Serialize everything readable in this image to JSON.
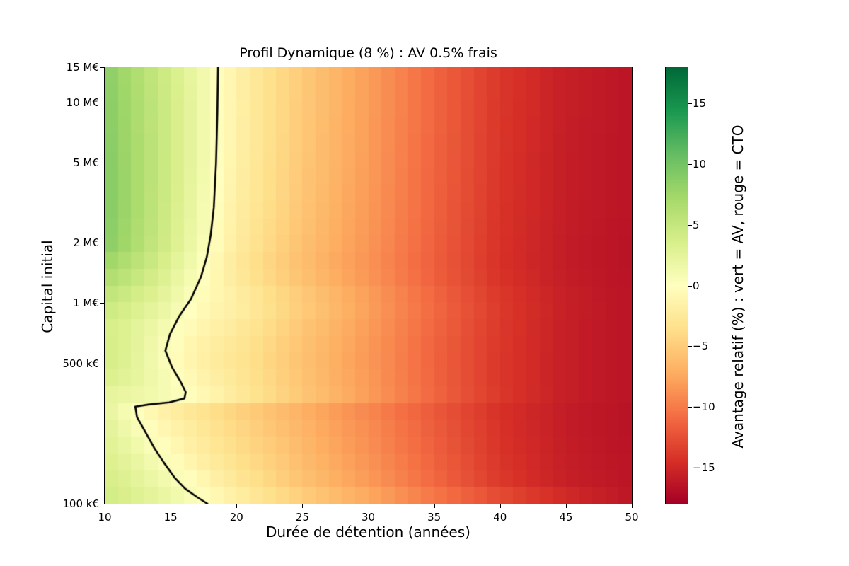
{
  "figure": {
    "title": "Profil Dynamique (8 %) : AV 0.5% frais",
    "xlabel": "Durée de détention (années)",
    "ylabel": "Capital initial"
  },
  "chart_data": {
    "type": "heatmap",
    "title": "Profil Dynamique (8 %) : AV 0.5% frais",
    "xlabel": "Durée de détention (années)",
    "ylabel": "Capital initial",
    "x_axis_range": [
      10,
      50
    ],
    "x_ticks": [
      10,
      15,
      20,
      25,
      30,
      35,
      40,
      45,
      50
    ],
    "y_scale": "log",
    "y_ticks": [
      {
        "label": "15 M€",
        "value": 15000000
      },
      {
        "label": "10 M€",
        "value": 10000000
      },
      {
        "label": "5 M€",
        "value": 5000000
      },
      {
        "label": "2 M€",
        "value": 2000000
      },
      {
        "label": "1 M€",
        "value": 1000000
      },
      {
        "label": "500 k€",
        "value": 500000
      },
      {
        "label": "100 k€",
        "value": 100000
      }
    ],
    "x": [
      10,
      12,
      14,
      16,
      18,
      20,
      22,
      25,
      28,
      30,
      35,
      40,
      45,
      50
    ],
    "capital": [
      15000000,
      10000000,
      5000000,
      3000000,
      2000000,
      1500000,
      1000000,
      750000,
      550000,
      420000,
      350000,
      300000,
      250000,
      200000,
      150000,
      120000,
      100000
    ],
    "values": [
      [
        8.8,
        6.9,
        4.9,
        2.8,
        0.7,
        -1.6,
        -3.1,
        -5.2,
        -7.0,
        -8.1,
        -11.2,
        -14.0,
        -15.7,
        -16.4
      ],
      [
        9.0,
        7.1,
        5.1,
        3.0,
        0.8,
        -1.5,
        -3.1,
        -5.2,
        -7.0,
        -8.1,
        -11.2,
        -14.0,
        -15.7,
        -16.4
      ],
      [
        9.3,
        7.3,
        5.2,
        3.0,
        0.7,
        -1.6,
        -3.2,
        -5.3,
        -7.1,
        -8.2,
        -11.3,
        -14.1,
        -15.8,
        -16.5
      ],
      [
        9.3,
        7.3,
        5.1,
        2.8,
        0.4,
        -1.9,
        -3.4,
        -5.5,
        -7.3,
        -8.3,
        -11.4,
        -14.2,
        -15.8,
        -16.5
      ],
      [
        9.0,
        7.0,
        4.8,
        2.5,
        0.1,
        -2.2,
        -3.7,
        -5.8,
        -7.5,
        -8.5,
        -11.5,
        -14.3,
        -15.9,
        -16.6
      ],
      [
        7.4,
        5.8,
        4.0,
        1.8,
        -0.5,
        -2.6,
        -4.1,
        -6.1,
        -7.8,
        -8.7,
        -11.7,
        -14.4,
        -15.9,
        -16.6
      ],
      [
        4.9,
        3.8,
        2.6,
        0.6,
        -0.8,
        -1.7,
        -3.0,
        -4.9,
        -6.7,
        -7.9,
        -11.0,
        -13.8,
        -15.6,
        -16.5
      ],
      [
        3.8,
        2.9,
        1.5,
        -0.3,
        -1.5,
        -2.4,
        -3.6,
        -5.4,
        -7.1,
        -8.2,
        -11.2,
        -13.9,
        -15.7,
        -16.5
      ],
      [
        4.2,
        2.9,
        0.8,
        -1.0,
        -2.2,
        -3.0,
        -4.1,
        -5.8,
        -7.4,
        -8.4,
        -11.4,
        -14.0,
        -15.7,
        -16.5
      ],
      [
        3.4,
        2.5,
        1.2,
        -0.3,
        -1.7,
        -2.7,
        -3.9,
        -5.6,
        -7.3,
        -8.3,
        -11.3,
        -14.0,
        -15.7,
        -16.5
      ],
      [
        2.4,
        1.9,
        1.2,
        0.1,
        -1.2,
        -2.4,
        -3.6,
        -5.4,
        -7.1,
        -8.2,
        -11.2,
        -13.9,
        -15.7,
        -16.5
      ],
      [
        2.4,
        0.3,
        -1.4,
        -2.6,
        -3.6,
        -4.6,
        -5.5,
        -7.0,
        -8.5,
        -9.4,
        -12.0,
        -14.4,
        -15.9,
        -16.6
      ],
      [
        2.8,
        0.9,
        -0.8,
        -2.1,
        -3.2,
        -4.2,
        -5.2,
        -6.7,
        -8.2,
        -9.1,
        -11.8,
        -14.3,
        -15.9,
        -16.6
      ],
      [
        3.1,
        1.7,
        0.1,
        -1.5,
        -2.7,
        -3.8,
        -4.8,
        -6.4,
        -8.0,
        -8.9,
        -11.6,
        -14.2,
        -15.8,
        -16.6
      ],
      [
        3.7,
        2.5,
        1.1,
        -0.5,
        -2.0,
        -3.2,
        -4.3,
        -6.0,
        -7.6,
        -8.5,
        -11.3,
        -14.0,
        -15.7,
        -16.5
      ],
      [
        4.1,
        3.1,
        2.0,
        0.7,
        -1.0,
        -2.4,
        -3.7,
        -5.5,
        -7.2,
        -8.1,
        -11.0,
        -13.8,
        -15.6,
        -16.4
      ],
      [
        4.4,
        3.5,
        2.5,
        1.4,
        -0.1,
        -1.4,
        -2.6,
        -4.2,
        -5.8,
        -6.8,
        -9.5,
        -11.8,
        -14.2,
        -16.2
      ]
    ],
    "zero_contour": [
      [
        18.6,
        15000000
      ],
      [
        18.55,
        9000000
      ],
      [
        18.45,
        5000000
      ],
      [
        18.28,
        3000000
      ],
      [
        18.05,
        2200000
      ],
      [
        17.75,
        1700000
      ],
      [
        17.3,
        1350000
      ],
      [
        16.55,
        1050000
      ],
      [
        15.65,
        860000
      ],
      [
        14.95,
        700000
      ],
      [
        14.6,
        580000
      ],
      [
        15.1,
        480000
      ],
      [
        15.72,
        410000
      ],
      [
        16.15,
        360000
      ],
      [
        16.05,
        335000
      ],
      [
        14.9,
        320000
      ],
      [
        13.3,
        312000
      ],
      [
        12.32,
        305000
      ],
      [
        12.45,
        270000
      ],
      [
        13.05,
        230000
      ],
      [
        13.75,
        190000
      ],
      [
        14.5,
        160000
      ],
      [
        15.3,
        135000
      ],
      [
        16.1,
        119000
      ],
      [
        17.0,
        108000
      ],
      [
        17.8,
        100000
      ]
    ],
    "contour_color": "#000000",
    "colorbar": {
      "label": "Avantage relatif (%) : vert = AV, rouge = CTO",
      "ticks": [
        15,
        10,
        5,
        0,
        -5,
        -10,
        -15
      ],
      "vmin": -18,
      "vmax": 18,
      "colormap": "RdYlGn",
      "colors": [
        "#a50026",
        "#d73027",
        "#f46d43",
        "#fdae61",
        "#fee08b",
        "#ffffbf",
        "#d9ef8b",
        "#a6d96a",
        "#66bd63",
        "#1a9850",
        "#006837"
      ]
    }
  }
}
